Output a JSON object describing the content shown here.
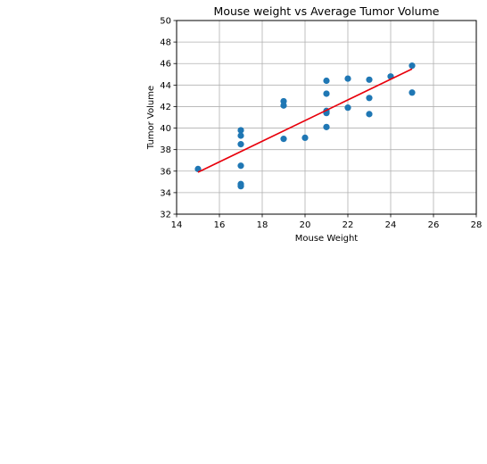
{
  "chart_data": {
    "type": "scatter",
    "title": "Mouse weight vs Average Tumor Volume",
    "xlabel": "Mouse Weight",
    "ylabel": "Tumor Volume",
    "xlim": [
      14,
      28
    ],
    "ylim": [
      32,
      50
    ],
    "xticks": [
      14,
      16,
      18,
      20,
      22,
      24,
      26,
      28
    ],
    "yticks": [
      32,
      34,
      36,
      38,
      40,
      42,
      44,
      46,
      48,
      50
    ],
    "grid": true,
    "point_color": "#1f77b4",
    "line_color": "#e8000b",
    "points": [
      {
        "x": 15,
        "y": 36.2
      },
      {
        "x": 17,
        "y": 39.8
      },
      {
        "x": 17,
        "y": 39.3
      },
      {
        "x": 17,
        "y": 38.5
      },
      {
        "x": 17,
        "y": 36.5
      },
      {
        "x": 17,
        "y": 34.8
      },
      {
        "x": 17,
        "y": 34.6
      },
      {
        "x": 19,
        "y": 42.5
      },
      {
        "x": 19,
        "y": 42.1
      },
      {
        "x": 19,
        "y": 39.0
      },
      {
        "x": 20,
        "y": 39.1
      },
      {
        "x": 21,
        "y": 44.4
      },
      {
        "x": 21,
        "y": 43.2
      },
      {
        "x": 21,
        "y": 41.6
      },
      {
        "x": 21,
        "y": 41.4
      },
      {
        "x": 21,
        "y": 40.1
      },
      {
        "x": 22,
        "y": 44.6
      },
      {
        "x": 22,
        "y": 41.9
      },
      {
        "x": 23,
        "y": 44.5
      },
      {
        "x": 23,
        "y": 42.8
      },
      {
        "x": 23,
        "y": 41.3
      },
      {
        "x": 24,
        "y": 44.8
      },
      {
        "x": 25,
        "y": 45.8
      },
      {
        "x": 25,
        "y": 43.3
      }
    ],
    "regression_line": [
      {
        "x": 15,
        "y": 35.9
      },
      {
        "x": 25,
        "y": 45.5
      }
    ]
  }
}
